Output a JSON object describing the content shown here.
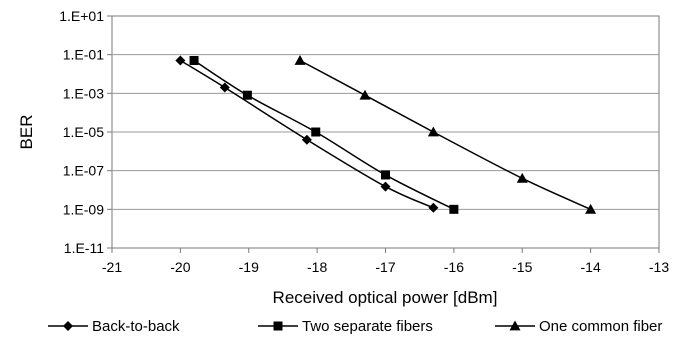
{
  "chart_data": {
    "type": "line",
    "title": "",
    "xlabel": "Received optical power [dBm]",
    "ylabel": "BER",
    "xlim": [
      -21,
      -13
    ],
    "ylim_log10": [
      -11,
      1
    ],
    "y_scale": "log",
    "grid": "horizontal",
    "legend_position": "bottom",
    "x_ticks": [
      "-21",
      "-20",
      "-19",
      "-18",
      "-17",
      "-16",
      "-15",
      "-14",
      "-13"
    ],
    "y_ticks": [
      "1.E+01",
      "1.E-01",
      "1.E-03",
      "1.E-05",
      "1.E-07",
      "1.E-09",
      "1.E-11"
    ],
    "series": [
      {
        "name": "Back-to-back",
        "marker": "diamond",
        "x": [
          -20,
          -19.35,
          -18.15,
          -17,
          -16.3
        ],
        "y": [
          0.05,
          0.002,
          4e-06,
          1.5e-08,
          1.2e-09
        ]
      },
      {
        "name": "Two separate fibers",
        "marker": "square",
        "x": [
          -19.8,
          -19.02,
          -18.02,
          -17,
          -16
        ],
        "y": [
          0.05,
          0.0008,
          1e-05,
          6e-08,
          1e-09
        ]
      },
      {
        "name": "One common fiber",
        "marker": "triangle",
        "x": [
          -18.25,
          -17.3,
          -16.3,
          -15,
          -14
        ],
        "y": [
          0.05,
          0.0008,
          1e-05,
          4e-08,
          1e-09
        ]
      }
    ]
  }
}
